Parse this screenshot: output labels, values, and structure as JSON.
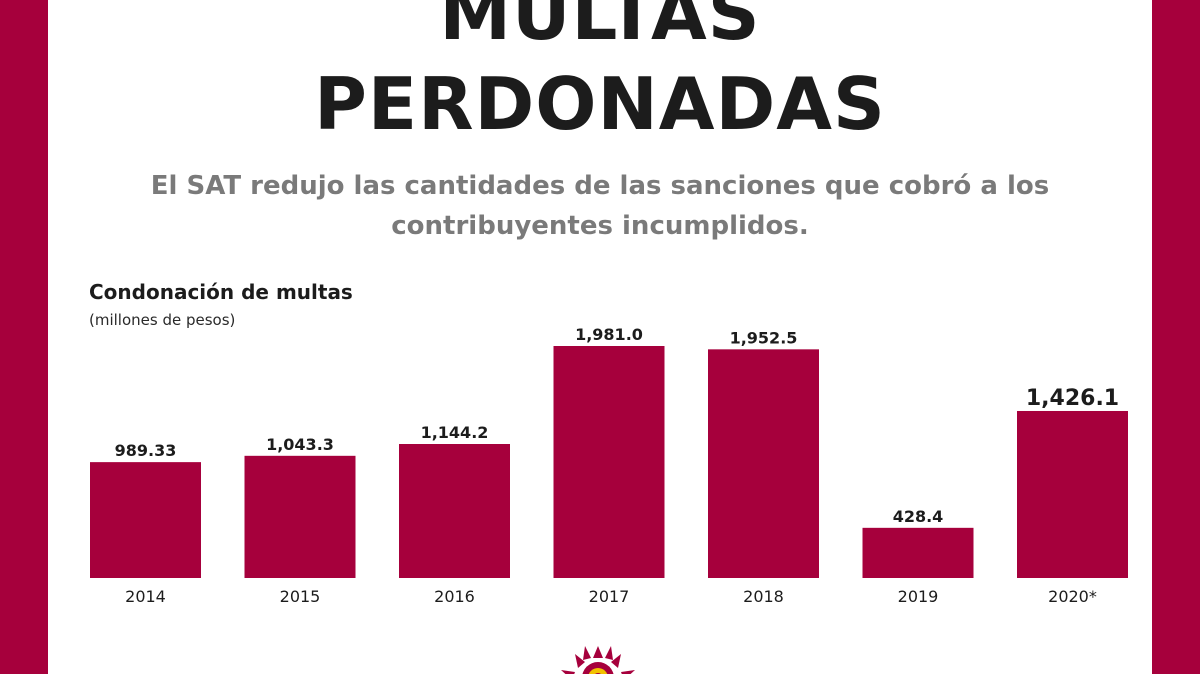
{
  "header": {
    "title_line1": "MULTAS",
    "title_line2": "PERDONADAS",
    "subtitle": "El SAT redujo las cantidades de las sanciones que cobró a los contribuyentes incumplidos."
  },
  "colors": {
    "accent": "#a6003c",
    "text": "#1c1c1c",
    "subtitle": "#7a7a7a",
    "background": "#ffffff"
  },
  "chart_data": {
    "type": "bar",
    "title": "Condonación de multas",
    "subtitle": "(millones de pesos)",
    "categories": [
      "2014",
      "2015",
      "2016",
      "2017",
      "2018",
      "2019",
      "2020*"
    ],
    "values": [
      989.33,
      1043.3,
      1144.2,
      1981.0,
      1952.5,
      428.4,
      1426.1
    ],
    "value_labels": [
      "989.33",
      "1,043.3",
      "1,144.2",
      "1,981.0",
      "1,952.5",
      "428.4",
      "1,426.1"
    ],
    "highlight_index": 6,
    "ylim": [
      0,
      1981.0
    ],
    "grid": false,
    "legend": "none"
  }
}
